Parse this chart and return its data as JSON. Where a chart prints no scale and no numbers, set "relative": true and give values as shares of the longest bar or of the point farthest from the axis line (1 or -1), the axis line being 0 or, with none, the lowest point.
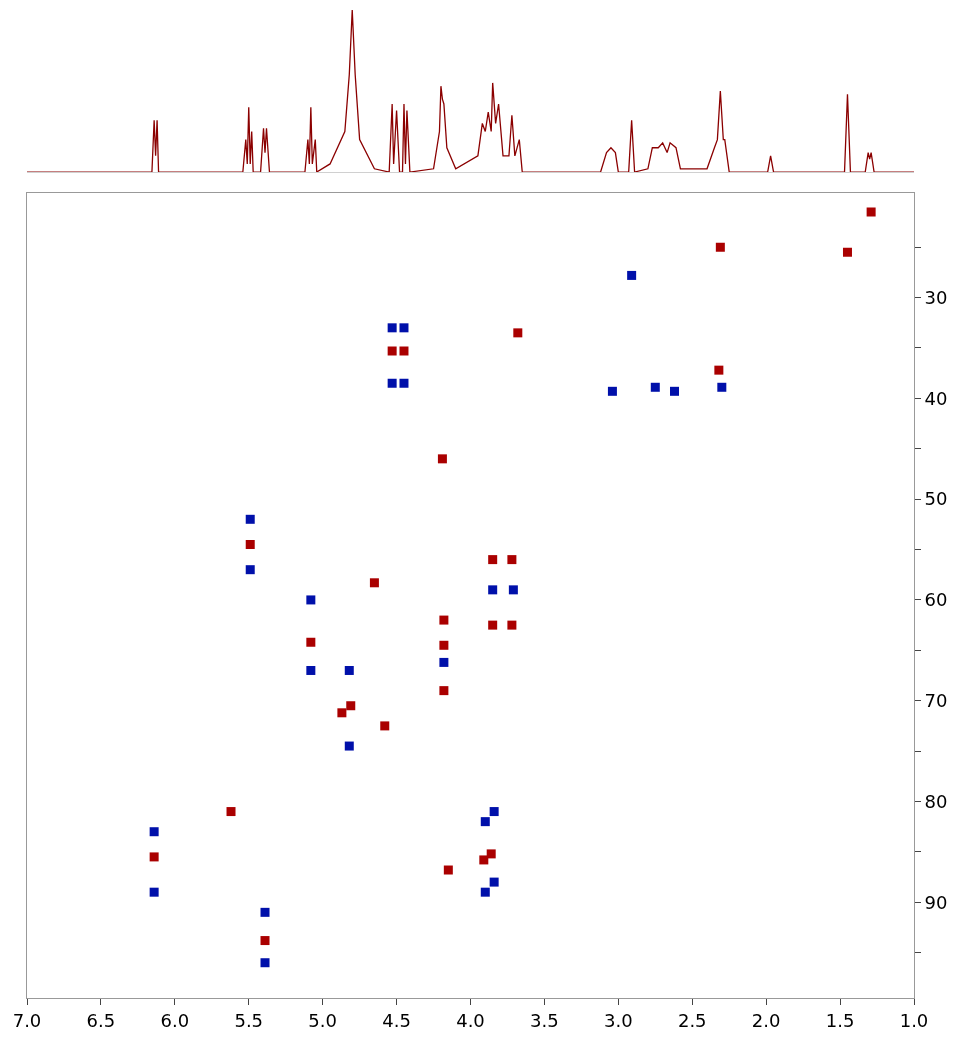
{
  "chart_data": [
    {
      "type": "line",
      "relative": true,
      "xlim": [
        7.0,
        1.0
      ],
      "tick_labels": false,
      "marker": "none",
      "line_style": "solid",
      "series": [
        {
          "color": "#8b0000",
          "x": [
            7.0,
            6.2,
            6.155,
            6.14,
            6.13,
            6.12,
            6.11,
            6.09,
            5.54,
            5.52,
            5.51,
            5.5,
            5.49,
            5.48,
            5.47,
            5.46,
            5.42,
            5.4,
            5.39,
            5.38,
            5.36,
            5.12,
            5.1,
            5.09,
            5.08,
            5.07,
            5.05,
            5.04,
            4.95,
            4.85,
            4.82,
            4.8,
            4.78,
            4.75,
            4.65,
            4.55,
            4.53,
            4.52,
            4.5,
            4.48,
            4.46,
            4.45,
            4.44,
            4.43,
            4.41,
            4.25,
            4.21,
            4.2,
            4.19,
            4.18,
            4.16,
            4.1,
            3.95,
            3.92,
            3.9,
            3.88,
            3.86,
            3.85,
            3.83,
            3.81,
            3.78,
            3.74,
            3.72,
            3.7,
            3.67,
            3.65,
            3.12,
            3.08,
            3.05,
            3.02,
            3.0,
            2.93,
            2.91,
            2.89,
            2.8,
            2.77,
            2.73,
            2.7,
            2.67,
            2.65,
            2.61,
            2.58,
            2.4,
            2.35,
            2.33,
            2.31,
            2.29,
            2.28,
            2.25,
            1.99,
            1.97,
            1.95,
            1.47,
            1.45,
            1.43,
            1.33,
            1.31,
            1.3,
            1.29,
            1.27,
            1.0
          ],
          "values": [
            0.0,
            0.0,
            0.0,
            0.32,
            0.1,
            0.32,
            0.0,
            0.0,
            0.0,
            0.2,
            0.05,
            0.4,
            0.05,
            0.25,
            0.0,
            0.0,
            0.0,
            0.27,
            0.12,
            0.27,
            0.0,
            0.0,
            0.2,
            0.05,
            0.4,
            0.05,
            0.2,
            0.0,
            0.05,
            0.25,
            0.6,
            1.0,
            0.6,
            0.2,
            0.02,
            0.0,
            0.42,
            0.05,
            0.38,
            0.0,
            0.0,
            0.42,
            0.05,
            0.38,
            0.0,
            0.02,
            0.25,
            0.53,
            0.45,
            0.42,
            0.15,
            0.02,
            0.1,
            0.3,
            0.25,
            0.37,
            0.25,
            0.55,
            0.3,
            0.42,
            0.1,
            0.1,
            0.35,
            0.1,
            0.2,
            0.0,
            0.0,
            0.12,
            0.15,
            0.12,
            0.0,
            0.0,
            0.32,
            0.0,
            0.02,
            0.15,
            0.15,
            0.18,
            0.12,
            0.18,
            0.15,
            0.02,
            0.02,
            0.15,
            0.2,
            0.5,
            0.2,
            0.2,
            0.0,
            0.0,
            0.1,
            0.0,
            0.0,
            0.48,
            0.0,
            0.0,
            0.12,
            0.08,
            0.12,
            0.0,
            0.0
          ]
        }
      ]
    },
    {
      "type": "scatter",
      "xlim": [
        7.0,
        1.0
      ],
      "ylim": [
        99.5,
        19.6
      ],
      "marker": "square",
      "xticks": [
        {
          "value": 7,
          "label": "7.0"
        },
        6.5,
        {
          "value": 6,
          "label": "6.0"
        },
        5.5,
        {
          "value": 5,
          "label": "5.0"
        },
        4.5,
        {
          "value": 4,
          "label": "4.0"
        },
        3.5,
        {
          "value": 3,
          "label": "3.0"
        },
        2.5,
        {
          "value": 2,
          "label": "2.0"
        },
        1.5,
        {
          "value": 1,
          "label": "1.0"
        }
      ],
      "yticks": [
        {
          "value": 25,
          "label": null
        },
        30,
        {
          "value": 35,
          "label": null
        },
        40,
        {
          "value": 45,
          "label": null
        },
        50,
        {
          "value": 55,
          "label": null
        },
        60,
        {
          "value": 65,
          "label": null
        },
        70,
        {
          "value": 75,
          "label": null
        },
        80,
        {
          "value": 85,
          "label": null
        },
        90,
        {
          "value": 95,
          "label": null
        }
      ],
      "series": [
        {
          "color": "#aa0000",
          "x": [
            1.29,
            1.45,
            2.31,
            4.53,
            4.45,
            5.49,
            5.08,
            4.87,
            4.81,
            4.18,
            4.18,
            4.18,
            4.19,
            3.85,
            3.72,
            3.85,
            3.72,
            6.14,
            5.39,
            3.91,
            3.86,
            4.15,
            5.62,
            4.65,
            4.58,
            3.68,
            2.32
          ],
          "values": [
            21.5,
            25.5,
            25,
            35.3,
            35.3,
            54.5,
            64.2,
            71.2,
            70.5,
            62,
            64.5,
            69,
            46,
            56,
            56,
            62.5,
            62.5,
            85.5,
            93.8,
            85.8,
            85.2,
            86.8,
            81,
            58.3,
            72.5,
            33.5,
            37.2
          ]
        },
        {
          "color": "#0010aa",
          "x": [
            2.91,
            3.04,
            2.75,
            2.62,
            2.3,
            4.53,
            4.53,
            4.45,
            4.45,
            5.49,
            5.49,
            5.08,
            5.08,
            4.82,
            4.82,
            4.18,
            3.85,
            3.71,
            6.14,
            6.14,
            5.39,
            5.39,
            3.9,
            3.9,
            3.84,
            3.84
          ],
          "values": [
            27.8,
            39.3,
            38.9,
            39.3,
            38.9,
            33,
            38.5,
            33,
            38.5,
            52,
            57,
            60,
            67,
            67,
            74.5,
            66.2,
            59,
            59,
            83,
            89,
            91,
            96,
            82,
            89,
            81,
            88
          ]
        }
      ]
    }
  ]
}
